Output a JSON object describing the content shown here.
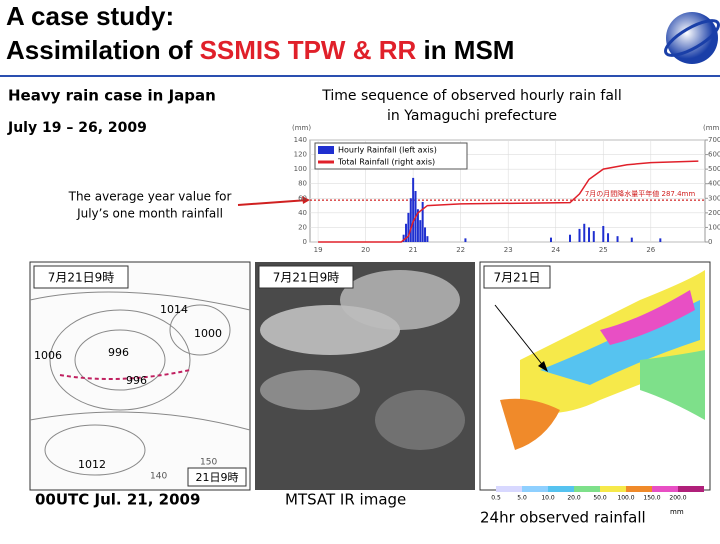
{
  "title": {
    "line1": "A case study:",
    "line2_a": "Assimilation of ",
    "line2_b": "SSMIS TPW & RR",
    "line2_c": " in MSM"
  },
  "left_heading": "Heavy rain case in Japan",
  "period": "July 19 – 26, 2009",
  "chart": {
    "type": "bar-line",
    "title_lines": [
      "Time sequence of observed hourly rain fall",
      "in Yamaguchi prefecture"
    ],
    "y_unit": "(mm)",
    "y2_unit": "(mm)",
    "xlim": [
      18.83,
      27.14
    ],
    "xticks": [
      19,
      20,
      21,
      22,
      23,
      24,
      25,
      26
    ],
    "ylim": [
      0,
      140
    ],
    "yticks": [
      0,
      20,
      40,
      60,
      80,
      100,
      120,
      140
    ],
    "y2lim": [
      0,
      700
    ],
    "y2ticks": [
      0,
      100,
      200,
      300,
      400,
      500,
      600,
      700
    ],
    "series": [
      {
        "name": "Hourly Rainfall (left axis)",
        "color": "#1f2fd0",
        "x": [
          20.8,
          20.85,
          20.9,
          20.95,
          21.0,
          21.05,
          21.1,
          21.15,
          21.2,
          21.25,
          21.3,
          22.1,
          23.9,
          24.3,
          24.5,
          24.6,
          24.7,
          24.8,
          25.0,
          25.1,
          25.3,
          25.6,
          26.2
        ],
        "values": [
          10,
          25,
          40,
          60,
          88,
          70,
          45,
          30,
          55,
          20,
          8,
          5,
          6,
          10,
          18,
          25,
          20,
          15,
          22,
          12,
          8,
          6,
          5
        ]
      },
      {
        "name": "Total Rainfall (right axis)",
        "color": "#e0202a",
        "axis": "y2",
        "x": [
          19,
          20.75,
          20.9,
          21.0,
          21.1,
          21.3,
          22,
          24.3,
          24.5,
          24.7,
          25.0,
          25.5,
          26,
          27
        ],
        "values": [
          0,
          0,
          40,
          140,
          200,
          250,
          262,
          270,
          330,
          430,
          500,
          530,
          545,
          555
        ]
      }
    ],
    "reference": {
      "value": 287.4,
      "label": "7月の月間降水量平年値 287.4mm",
      "color": "#d02020"
    }
  },
  "annotation": [
    "The average year value for",
    "July’s one month rainfall"
  ],
  "panels": [
    {
      "stamp": "7月21日9時",
      "caption": "00UTC Jul. 21, 2009",
      "pressure_labels": [
        "1014",
        "1000",
        "996",
        "996",
        "1006",
        "1012"
      ],
      "lon_labels": [
        "140",
        "150"
      ],
      "corner_stamp": "21日9時"
    },
    {
      "stamp": "7月21日9時",
      "caption": "MTSAT IR image"
    },
    {
      "stamp": "7月21日",
      "caption": "24hr observed rainfall",
      "scale": [
        "0.5",
        "5.0",
        "10.0",
        "20.0",
        "50.0",
        "100.0",
        "150.0",
        "200.0"
      ],
      "unit": "mm"
    }
  ]
}
